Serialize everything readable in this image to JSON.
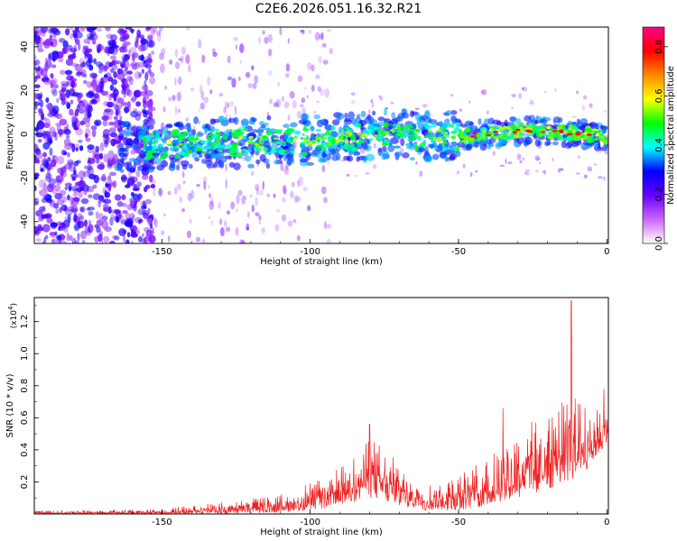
{
  "title": "C2E6.2026.051.16.32.R21",
  "chart_data": [
    {
      "type": "heatmap",
      "title": "C2E6.2026.051.16.32.R21",
      "xlabel": "Height of straight line (km)",
      "ylabel": "Frequency (Hz)",
      "xlim": [
        -193,
        0.5
      ],
      "ylim": [
        -50,
        49
      ],
      "x_ticks": [
        -150,
        -100,
        -50,
        0
      ],
      "x_tick_labels": [
        "-150",
        "-100",
        "-50",
        "0"
      ],
      "y_ticks": [
        -40,
        -20,
        0,
        20,
        40
      ],
      "y_tick_labels": [
        "-40",
        "-20",
        "0",
        "20",
        "40"
      ],
      "colorbar": {
        "label": "Normalized spectral amplitude",
        "range": [
          0.0,
          0.88
        ],
        "ticks": [
          0.0,
          0.2,
          0.4,
          0.6,
          0.8
        ],
        "tick_labels": [
          "0.0",
          "0.2",
          "0.4",
          "0.6",
          "0.8"
        ],
        "colors": [
          "#ffffff",
          "#cc66ff",
          "#6600ff",
          "#0000ff",
          "#00ffff",
          "#00ff00",
          "#ffff00",
          "#ff8800",
          "#ff0000",
          "#ff0088"
        ]
      },
      "ridge_center_hz": [
        {
          "x": -155,
          "y": -5
        },
        {
          "x": -130,
          "y": -4
        },
        {
          "x": -100,
          "y": -3
        },
        {
          "x": -75,
          "y": 0
        },
        {
          "x": -50,
          "y": -1
        },
        {
          "x": -25,
          "y": 2
        },
        {
          "x": 0,
          "y": -1
        }
      ],
      "peak_amplitude_region_km": [
        -50,
        0
      ]
    },
    {
      "type": "line",
      "xlabel": "Height of straight line (km)",
      "ylabel": "SNR (10 * v/v)",
      "scale_label": "(x10",
      "scale_exponent": "4",
      "xlim": [
        -193,
        0.5
      ],
      "ylim": [
        0,
        1.35
      ],
      "x_ticks": [
        -150,
        -100,
        -50,
        0
      ],
      "x_tick_labels": [
        "-150",
        "-100",
        "-50",
        "0"
      ],
      "y_ticks": [
        0.2,
        0.4,
        0.6,
        0.8,
        1.0,
        1.2
      ],
      "y_tick_labels": [
        "0.2",
        "0.4",
        "0.6",
        "0.8",
        "1.0",
        "1.2"
      ],
      "color": "#ee2222",
      "envelope": [
        {
          "x": -193,
          "lo": 0.0,
          "hi": 0.02
        },
        {
          "x": -150,
          "lo": 0.0,
          "hi": 0.03
        },
        {
          "x": -130,
          "lo": 0.0,
          "hi": 0.08
        },
        {
          "x": -110,
          "lo": 0.01,
          "hi": 0.12
        },
        {
          "x": -100,
          "lo": 0.02,
          "hi": 0.2
        },
        {
          "x": -90,
          "lo": 0.05,
          "hi": 0.3
        },
        {
          "x": -80,
          "lo": 0.1,
          "hi": 0.5
        },
        {
          "x": -70,
          "lo": 0.05,
          "hi": 0.32
        },
        {
          "x": -60,
          "lo": 0.02,
          "hi": 0.2
        },
        {
          "x": -50,
          "lo": 0.02,
          "hi": 0.25
        },
        {
          "x": -40,
          "lo": 0.05,
          "hi": 0.35
        },
        {
          "x": -30,
          "lo": 0.1,
          "hi": 0.55
        },
        {
          "x": -20,
          "lo": 0.15,
          "hi": 0.65
        },
        {
          "x": -13,
          "lo": 0.2,
          "hi": 0.75
        },
        {
          "x": -5,
          "lo": 0.3,
          "hi": 0.7
        },
        {
          "x": 0,
          "lo": 0.45,
          "hi": 0.62
        }
      ],
      "peaks": [
        {
          "x": -80,
          "y": 0.56
        },
        {
          "x": -35,
          "y": 0.66
        },
        {
          "x": -12,
          "y": 1.33
        },
        {
          "x": -1,
          "y": 0.78
        }
      ]
    }
  ]
}
